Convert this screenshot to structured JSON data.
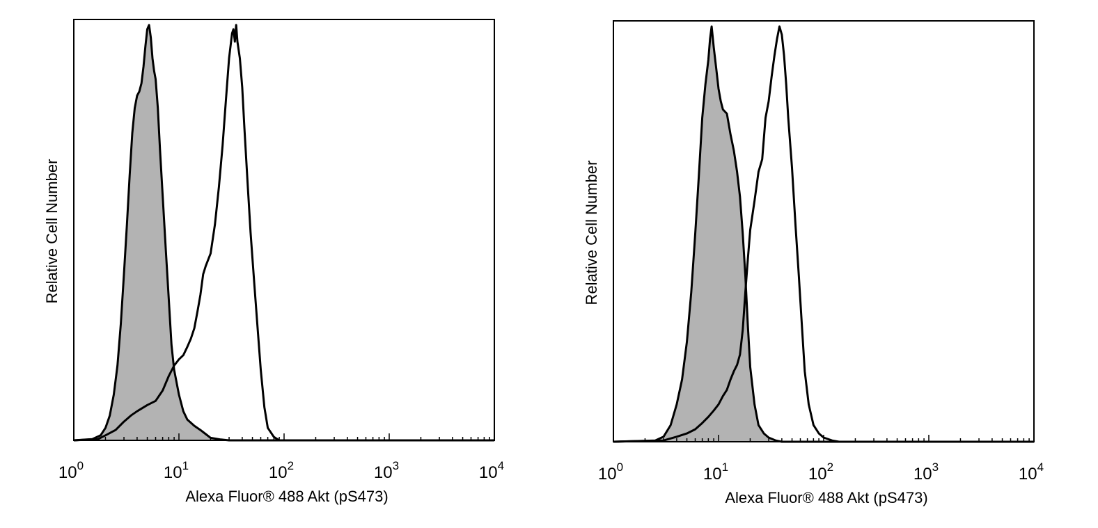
{
  "chart_data": [
    {
      "type": "area",
      "title": "",
      "xlabel": "Alexa Fluor® 488 Akt (pS473)",
      "ylabel": "Relative Cell Number",
      "x_scale": "log",
      "xlim": [
        1,
        10000
      ],
      "ylim": [
        0,
        100
      ],
      "x_ticks": [
        {
          "base": "10",
          "exp": "0",
          "value": 1
        },
        {
          "base": "10",
          "exp": "1",
          "value": 10
        },
        {
          "base": "10",
          "exp": "2",
          "value": 100
        },
        {
          "base": "10",
          "exp": "3",
          "value": 1000
        },
        {
          "base": "10",
          "exp": "4",
          "value": 10000
        }
      ],
      "grid": false,
      "series": [
        {
          "style": "filled-gray",
          "fill": "#b3b3b3",
          "points": [
            [
              1,
              0
            ],
            [
              1.5,
              0.3
            ],
            [
              1.8,
              1.2
            ],
            [
              2.0,
              3
            ],
            [
              2.2,
              6
            ],
            [
              2.4,
              11
            ],
            [
              2.6,
              18
            ],
            [
              2.8,
              28
            ],
            [
              3.0,
              40
            ],
            [
              3.2,
              52
            ],
            [
              3.4,
              64
            ],
            [
              3.6,
              74
            ],
            [
              3.8,
              80
            ],
            [
              4.0,
              83
            ],
            [
              4.2,
              84
            ],
            [
              4.4,
              86
            ],
            [
              4.6,
              90
            ],
            [
              4.8,
              95
            ],
            [
              5.0,
              99
            ],
            [
              5.2,
              100
            ],
            [
              5.4,
              97
            ],
            [
              5.6,
              92
            ],
            [
              5.8,
              89
            ],
            [
              6.0,
              87
            ],
            [
              6.3,
              80
            ],
            [
              6.6,
              70
            ],
            [
              7.0,
              59
            ],
            [
              7.5,
              46
            ],
            [
              8.0,
              34
            ],
            [
              8.5,
              23
            ],
            [
              9.0,
              17
            ],
            [
              10,
              11
            ],
            [
              11,
              7
            ],
            [
              12,
              5
            ],
            [
              14,
              3.5
            ],
            [
              16,
              2.5
            ],
            [
              18,
              1.5
            ],
            [
              20,
              0.6
            ],
            [
              25,
              0.2
            ],
            [
              30,
              0
            ],
            [
              10000,
              0
            ]
          ]
        },
        {
          "style": "open-outline",
          "fill": "none",
          "points": [
            [
              1,
              0
            ],
            [
              1.7,
              0.3
            ],
            [
              2.0,
              1.2
            ],
            [
              2.5,
              2.5
            ],
            [
              3.0,
              4.5
            ],
            [
              3.5,
              6
            ],
            [
              4.0,
              7
            ],
            [
              5.0,
              8.5
            ],
            [
              6.0,
              9.5
            ],
            [
              7.0,
              12
            ],
            [
              8.0,
              15.5
            ],
            [
              9.0,
              18
            ],
            [
              10,
              19.5
            ],
            [
              11,
              20.5
            ],
            [
              12,
              22.5
            ],
            [
              13,
              24.5
            ],
            [
              14,
              27
            ],
            [
              15,
              31
            ],
            [
              16,
              35
            ],
            [
              17,
              40
            ],
            [
              18,
              42
            ],
            [
              20,
              45
            ],
            [
              22,
              52
            ],
            [
              24,
              61
            ],
            [
              26,
              71
            ],
            [
              28,
              82
            ],
            [
              30,
              92
            ],
            [
              32,
              98
            ],
            [
              33,
              99
            ],
            [
              34,
              96
            ],
            [
              35,
              100
            ],
            [
              36,
              96
            ],
            [
              38,
              92
            ],
            [
              40,
              85
            ],
            [
              42,
              75
            ],
            [
              45,
              62
            ],
            [
              48,
              50
            ],
            [
              52,
              38
            ],
            [
              56,
              27
            ],
            [
              60,
              17
            ],
            [
              65,
              8
            ],
            [
              70,
              3
            ],
            [
              80,
              0.8
            ],
            [
              90,
              0
            ],
            [
              10000,
              0
            ]
          ]
        }
      ]
    },
    {
      "type": "area",
      "title": "",
      "xlabel": "Alexa Fluor® 488 Akt (pS473)",
      "ylabel": "Relative Cell Number",
      "x_scale": "log",
      "xlim": [
        1,
        10000
      ],
      "ylim": [
        0,
        100
      ],
      "x_ticks": [
        {
          "base": "10",
          "exp": "0",
          "value": 1
        },
        {
          "base": "10",
          "exp": "1",
          "value": 10
        },
        {
          "base": "10",
          "exp": "2",
          "value": 100
        },
        {
          "base": "10",
          "exp": "3",
          "value": 1000
        },
        {
          "base": "10",
          "exp": "4",
          "value": 10000
        }
      ],
      "grid": false,
      "series": [
        {
          "style": "filled-gray",
          "fill": "#b3b3b3",
          "points": [
            [
              1,
              0
            ],
            [
              2.5,
              0.3
            ],
            [
              3.0,
              1.2
            ],
            [
              3.5,
              4
            ],
            [
              4.0,
              9
            ],
            [
              4.5,
              15
            ],
            [
              5.0,
              24
            ],
            [
              5.5,
              36
            ],
            [
              6.0,
              50
            ],
            [
              6.5,
              64
            ],
            [
              7.0,
              78
            ],
            [
              7.5,
              86
            ],
            [
              8.0,
              92
            ],
            [
              8.3,
              97
            ],
            [
              8.6,
              100
            ],
            [
              9.0,
              95
            ],
            [
              9.5,
              90
            ],
            [
              10,
              85
            ],
            [
              10.5,
              82
            ],
            [
              11,
              80
            ],
            [
              12,
              79
            ],
            [
              13,
              74
            ],
            [
              14,
              70
            ],
            [
              15,
              65
            ],
            [
              16,
              59
            ],
            [
              17,
              50
            ],
            [
              18,
              40
            ],
            [
              19,
              28
            ],
            [
              20,
              18
            ],
            [
              22,
              9
            ],
            [
              24,
              4
            ],
            [
              27,
              2
            ],
            [
              30,
              1
            ],
            [
              35,
              0.3
            ],
            [
              40,
              0
            ],
            [
              10000,
              0
            ]
          ]
        },
        {
          "style": "open-outline",
          "fill": "none",
          "points": [
            [
              1,
              0
            ],
            [
              3.0,
              0.3
            ],
            [
              4.0,
              1.2
            ],
            [
              5.0,
              2
            ],
            [
              6.0,
              3
            ],
            [
              7.0,
              4.5
            ],
            [
              8.0,
              6
            ],
            [
              9.0,
              7.5
            ],
            [
              10,
              9
            ],
            [
              11,
              11
            ],
            [
              12,
              12.5
            ],
            [
              13,
              15
            ],
            [
              14,
              17
            ],
            [
              15,
              18.5
            ],
            [
              16,
              21
            ],
            [
              17,
              27
            ],
            [
              18,
              36
            ],
            [
              19,
              44
            ],
            [
              20,
              51
            ],
            [
              22,
              58
            ],
            [
              24,
              65
            ],
            [
              26,
              68
            ],
            [
              28,
              78
            ],
            [
              30,
              82
            ],
            [
              32,
              88
            ],
            [
              34,
              93
            ],
            [
              36,
              97
            ],
            [
              38,
              100
            ],
            [
              40,
              98
            ],
            [
              42,
              93
            ],
            [
              44,
              86
            ],
            [
              46,
              78
            ],
            [
              50,
              66
            ],
            [
              54,
              52
            ],
            [
              58,
              40
            ],
            [
              62,
              28
            ],
            [
              66,
              17
            ],
            [
              72,
              9
            ],
            [
              80,
              4
            ],
            [
              90,
              2
            ],
            [
              100,
              1
            ],
            [
              120,
              0.3
            ],
            [
              140,
              0
            ],
            [
              10000,
              0
            ]
          ]
        }
      ]
    }
  ]
}
